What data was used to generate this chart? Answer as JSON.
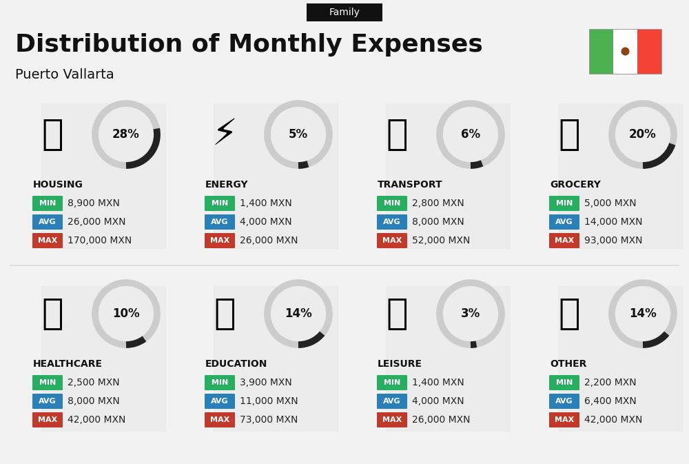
{
  "title": "Distribution of Monthly Expenses",
  "subtitle": "Puerto Vallarta",
  "tag": "Family",
  "background_color": "#f2f2f2",
  "categories": [
    {
      "name": "HOUSING",
      "pct": 28,
      "min": "8,900 MXN",
      "avg": "26,000 MXN",
      "max": "170,000 MXN",
      "row": 0,
      "col": 0
    },
    {
      "name": "ENERGY",
      "pct": 5,
      "min": "1,400 MXN",
      "avg": "4,000 MXN",
      "max": "26,000 MXN",
      "row": 0,
      "col": 1
    },
    {
      "name": "TRANSPORT",
      "pct": 6,
      "min": "2,800 MXN",
      "avg": "8,000 MXN",
      "max": "52,000 MXN",
      "row": 0,
      "col": 2
    },
    {
      "name": "GROCERY",
      "pct": 20,
      "min": "5,000 MXN",
      "avg": "14,000 MXN",
      "max": "93,000 MXN",
      "row": 0,
      "col": 3
    },
    {
      "name": "HEALTHCARE",
      "pct": 10,
      "min": "2,500 MXN",
      "avg": "8,000 MXN",
      "max": "42,000 MXN",
      "row": 1,
      "col": 0
    },
    {
      "name": "EDUCATION",
      "pct": 14,
      "min": "3,900 MXN",
      "avg": "11,000 MXN",
      "max": "73,000 MXN",
      "row": 1,
      "col": 1
    },
    {
      "name": "LEISURE",
      "pct": 3,
      "min": "1,400 MXN",
      "avg": "4,000 MXN",
      "max": "26,000 MXN",
      "row": 1,
      "col": 2
    },
    {
      "name": "OTHER",
      "pct": 14,
      "min": "2,200 MXN",
      "avg": "6,400 MXN",
      "max": "42,000 MXN",
      "row": 1,
      "col": 3
    }
  ],
  "min_color": "#27ae60",
  "avg_color": "#2980b9",
  "max_color": "#c0392b",
  "label_color": "#ffffff",
  "title_color": "#111111",
  "cat_color": "#111111",
  "donut_bg": "#cccccc",
  "donut_fill": "#222222",
  "tag_bg": "#111111",
  "tag_color": "#ffffff",
  "flag_green": "#4caf50",
  "flag_white": "#ffffff",
  "flag_red": "#f44336",
  "separator_color": "#dddddd",
  "diagonal_color": "#e8e8e8"
}
